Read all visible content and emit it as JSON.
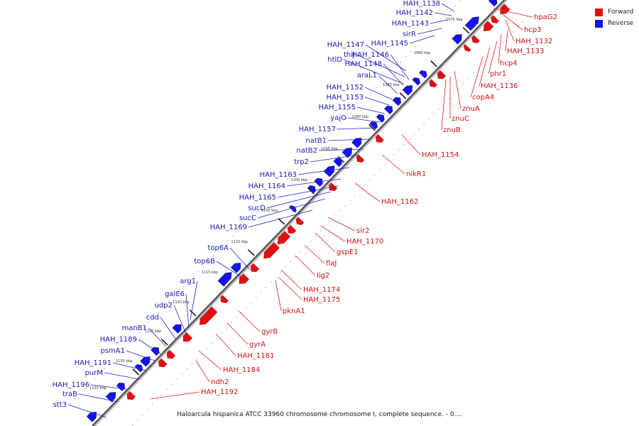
{
  "legend": {
    "forward_label": "Forward",
    "reverse_label": "Reverse",
    "forward_color": "#e01010",
    "reverse_color": "#1414e6"
  },
  "caption": "Haloarcula hispanica ATCC 33960 chromosome chromosome I, complete sequence. - 0....",
  "ticks": [
    "1075 kbp",
    "1080 kbp",
    "1085 kbp",
    "1090 kbp",
    "1095 kbp",
    "1100 kbp",
    "1105 kbp",
    "1110 kbp",
    "1115 kbp",
    "1120 kbp",
    "1125 kbp",
    "1130 kbp",
    "1135 kbp"
  ],
  "forward_genes": [
    "hpaG2",
    "hcp3",
    "HAH_1132",
    "HAH_1133",
    "hcp4",
    "phr1",
    "HAH_1136",
    "copA4",
    "znuA",
    "znuC",
    "znuB",
    "HAH_1154",
    "nikR1",
    "HAH_1162",
    "sir2",
    "HAH_1170",
    "gspE1",
    "flaJ",
    "lig2",
    "HAH_1174",
    "HAH_1175",
    "pknA1",
    "gyrB",
    "gyrA",
    "HAH_1181",
    "HAH_1184",
    "ndh2",
    "HAH_1192"
  ],
  "reverse_genes": [
    "HAH_1138",
    "HAH_1142",
    "HAH_1143",
    "sirR",
    "HAH_1145",
    "HAH_1147",
    "thiJ",
    "HAH_1146",
    "htlD",
    "HAH_1148",
    "araL1",
    "HAH_1152",
    "HAH_1153",
    "HAH_1155",
    "yajO",
    "HAH_1157",
    "natB1",
    "natB2",
    "trp2",
    "HAH_1163",
    "HAH_1164",
    "HAH_1165",
    "sucD",
    "sucC",
    "HAH_1169",
    "top6A",
    "top6B",
    "arg1",
    "galE6",
    "udp2",
    "cdd",
    "manB1",
    "HAH_1189",
    "psmA1",
    "HAH_1191",
    "purM",
    "HAH_1196",
    "traB",
    "stt3"
  ]
}
